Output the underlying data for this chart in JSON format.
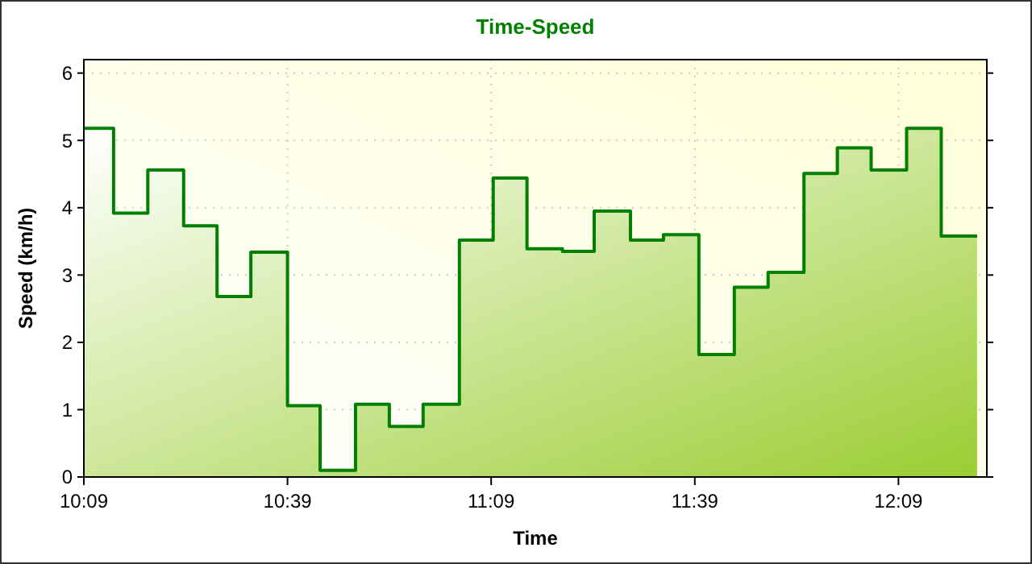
{
  "chart_data": {
    "type": "area",
    "title": "Time-Speed",
    "xlabel": "Time",
    "ylabel": "Speed (km/h)",
    "x": [
      10.15,
      10.223,
      10.223,
      10.307,
      10.307,
      10.395,
      10.395,
      10.477,
      10.477,
      10.56,
      10.56,
      10.65,
      10.65,
      10.73,
      10.73,
      10.817,
      10.817,
      10.9,
      10.9,
      10.983,
      10.983,
      11.072,
      11.072,
      11.155,
      11.155,
      11.238,
      11.238,
      11.325,
      11.325,
      11.403,
      11.403,
      11.492,
      11.492,
      11.573,
      11.573,
      11.66,
      11.66,
      11.747,
      11.747,
      11.83,
      11.83,
      11.918,
      11.918,
      12,
      12,
      12.083,
      12.083,
      12.17,
      12.17,
      12.255,
      12.255,
      12.343
    ],
    "series": [
      {
        "color": "#008000",
        "values": [
          5.18,
          5.18,
          3.92,
          3.92,
          4.56,
          4.56,
          3.73,
          3.73,
          2.68,
          2.68,
          3.34,
          3.34,
          1.06,
          1.06,
          0.1,
          0.1,
          1.08,
          1.08,
          0.75,
          0.75,
          1.08,
          1.08,
          3.52,
          3.52,
          4.44,
          4.44,
          3.39,
          3.39,
          3.35,
          3.35,
          3.95,
          3.95,
          3.52,
          3.52,
          3.6,
          3.6,
          1.82,
          1.82,
          2.82,
          2.82,
          3.04,
          3.04,
          4.51,
          4.51,
          4.89,
          4.89,
          4.56,
          4.56,
          5.18,
          5.18,
          3.58,
          3.58
        ]
      }
    ],
    "xlim": [
      10.15,
      12.367
    ],
    "xticks": [
      {
        "value": 10.15,
        "label": "10:09"
      },
      {
        "value": 10.65,
        "label": "10:39"
      },
      {
        "value": 11.15,
        "label": "11:09"
      },
      {
        "value": 11.65,
        "label": "11:39"
      },
      {
        "value": 12.15,
        "label": "12:09"
      }
    ],
    "ylim": [
      0,
      6.2
    ],
    "yticks": [
      0,
      1,
      2,
      3,
      4,
      5,
      6
    ],
    "grid": true
  }
}
